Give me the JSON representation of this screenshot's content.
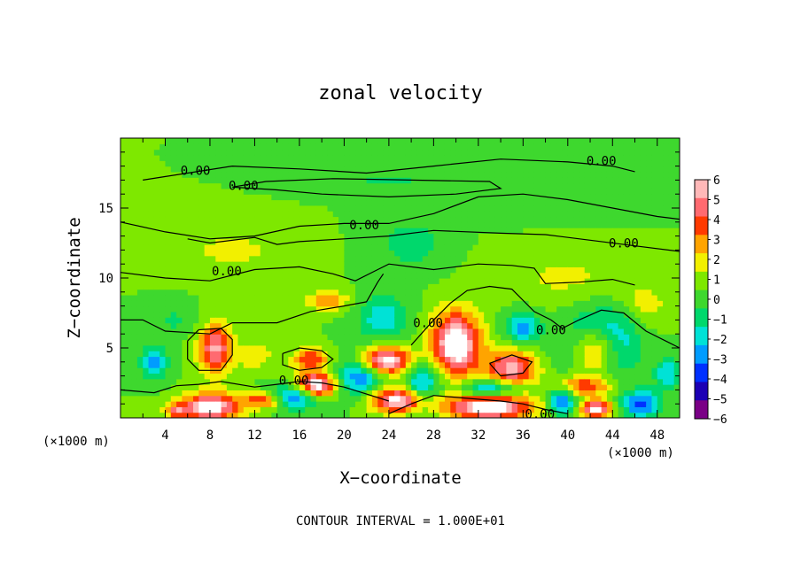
{
  "chart_data": {
    "type": "heatmap",
    "title": "zonal velocity",
    "xlabel": "X−coordinate",
    "ylabel": "Z−coordinate",
    "x_unit_left": "(×1000 m)",
    "x_unit_right": "(×1000 m)",
    "footer": "CONTOUR INTERVAL = 1.000E+01",
    "xlim": [
      0,
      50
    ],
    "ylim": [
      0,
      20
    ],
    "x_ticks": [
      4,
      8,
      12,
      16,
      20,
      24,
      28,
      32,
      36,
      40,
      44,
      48
    ],
    "x_minor_step": 2,
    "y_ticks": [
      5,
      10,
      15
    ],
    "y_minor_step": 1,
    "colorbar": {
      "min": -6,
      "max": 6,
      "ticks": [
        6,
        5,
        4,
        3,
        2,
        1,
        0,
        -1,
        -2,
        -3,
        -4,
        -5,
        -6
      ],
      "tick_labels": [
        "6",
        "5",
        "4",
        "3",
        "2",
        "1",
        "0",
        "−1",
        "−2",
        "−3",
        "−4",
        "−5",
        "−6"
      ],
      "colors": [
        "#7a0086",
        "#1c00b4",
        "#0030ff",
        "#009cff",
        "#00e2d6",
        "#00d86c",
        "#3ed82e",
        "#7ee800",
        "#f2f000",
        "#ffa400",
        "#ff3a00",
        "#ff6a70",
        "#ffb8b8"
      ]
    },
    "background_value": 0.5,
    "features": [
      {
        "x": 8.5,
        "z": 5.0,
        "value": 5.2,
        "rx": 1.5,
        "rz": 1.8
      },
      {
        "x": 17.0,
        "z": 4.2,
        "value": 4.0,
        "rx": 1.6,
        "rz": 0.8
      },
      {
        "x": 18.5,
        "z": 8.4,
        "value": 3.2,
        "rx": 1.8,
        "rz": 0.7
      },
      {
        "x": 23.5,
        "z": 4.1,
        "value": 7.0,
        "rx": 2.5,
        "rz": 1.0
      },
      {
        "x": 17.5,
        "z": 2.3,
        "value": 7.0,
        "rx": 1.7,
        "rz": 0.9
      },
      {
        "x": 25.0,
        "z": 1.3,
        "value": 6.5,
        "rx": 2.8,
        "rz": 0.9
      },
      {
        "x": 30.0,
        "z": 5.3,
        "value": 7.0,
        "rx": 2.2,
        "rz": 2.3
      },
      {
        "x": 33.0,
        "z": 0.8,
        "value": 6.5,
        "rx": 4.0,
        "rz": 0.9
      },
      {
        "x": 35.0,
        "z": 3.6,
        "value": 5.5,
        "rx": 2.2,
        "rz": 1.3
      },
      {
        "x": 42.5,
        "z": 4.9,
        "value": 6.5,
        "rx": 2.0,
        "rz": 1.7
      },
      {
        "x": 8.0,
        "z": 0.8,
        "value": 6.5,
        "rx": 2.6,
        "rz": 1.0
      },
      {
        "x": 42.5,
        "z": 0.7,
        "value": 6.5,
        "rx": 1.4,
        "rz": 0.6
      },
      {
        "x": 13.0,
        "z": 1.3,
        "value": 4.5,
        "rx": 2.0,
        "rz": 0.6
      },
      {
        "x": 41.5,
        "z": 2.3,
        "value": 4.0,
        "rx": 2.4,
        "rz": 0.7
      },
      {
        "x": 3.0,
        "z": 4.0,
        "value": -3.5,
        "rx": 1.2,
        "rz": 1.2
      },
      {
        "x": 15.5,
        "z": 1.5,
        "value": -5.0,
        "rx": 2.4,
        "rz": 0.8
      },
      {
        "x": 21.5,
        "z": 3.2,
        "value": -4.5,
        "rx": 2.0,
        "rz": 1.6
      },
      {
        "x": 27.0,
        "z": 2.2,
        "value": -4.0,
        "rx": 1.6,
        "rz": 1.8
      },
      {
        "x": 23.5,
        "z": 7.2,
        "value": -2.8,
        "rx": 2.2,
        "rz": 1.5
      },
      {
        "x": 36.0,
        "z": 6.5,
        "value": -3.5,
        "rx": 1.6,
        "rz": 1.2
      },
      {
        "x": 33.0,
        "z": 2.1,
        "value": -4.0,
        "rx": 2.5,
        "rz": 0.6
      },
      {
        "x": 43.0,
        "z": 5.4,
        "value": -5.2,
        "rx": 3.0,
        "rz": 2.3
      },
      {
        "x": 39.5,
        "z": 1.1,
        "value": -4.5,
        "rx": 1.2,
        "rz": 1.0
      },
      {
        "x": 46.5,
        "z": 1.0,
        "value": -4.5,
        "rx": 1.6,
        "rz": 1.0
      },
      {
        "x": 49.0,
        "z": 3.2,
        "value": -3.0,
        "rx": 1.2,
        "rz": 1.0
      },
      {
        "x": 5.0,
        "z": 0.5,
        "value": 3.5,
        "rx": 1.0,
        "rz": 0.5
      },
      {
        "x": 12.0,
        "z": 4.5,
        "value": 2.0,
        "rx": 1.5,
        "rz": 1.0
      },
      {
        "x": 26.0,
        "z": 12.5,
        "value": -1.5,
        "rx": 3.0,
        "rz": 2.0
      },
      {
        "x": 24.0,
        "z": 17.0,
        "value": -1.2,
        "rx": 5.0,
        "rz": 0.8
      },
      {
        "x": 38.0,
        "z": 15.5,
        "value": -1.0,
        "rx": 6.0,
        "rz": 1.2
      },
      {
        "x": 10.0,
        "z": 12.0,
        "value": 1.3,
        "rx": 5.0,
        "rz": 1.5
      },
      {
        "x": 40.0,
        "z": 10.0,
        "value": 1.2,
        "rx": 6.0,
        "rz": 2.0
      },
      {
        "x": 5.0,
        "z": 7.0,
        "value": -1.2,
        "rx": 2.0,
        "rz": 1.0
      },
      {
        "x": 47.0,
        "z": 8.0,
        "value": 1.5,
        "rx": 2.0,
        "rz": 1.5
      }
    ],
    "contour_labels": [
      {
        "x": 6.7,
        "z": 17.7,
        "text": "0.00"
      },
      {
        "x": 43.0,
        "z": 18.4,
        "text": "0.00"
      },
      {
        "x": 11.0,
        "z": 16.6,
        "text": "0.00"
      },
      {
        "x": 21.8,
        "z": 13.8,
        "text": "0.00"
      },
      {
        "x": 45.0,
        "z": 12.5,
        "text": "0.00"
      },
      {
        "x": 9.5,
        "z": 10.5,
        "text": "0.00"
      },
      {
        "x": 27.5,
        "z": 6.8,
        "text": "0.00"
      },
      {
        "x": 38.5,
        "z": 6.3,
        "text": "0.00"
      },
      {
        "x": 15.5,
        "z": 2.7,
        "text": "0.00"
      },
      {
        "x": 37.5,
        "z": 0.3,
        "text": "0.00"
      }
    ],
    "contours": [
      [
        [
          2,
          17.0
        ],
        [
          6,
          17.5
        ],
        [
          10,
          18.0
        ],
        [
          16,
          17.8
        ],
        [
          22,
          17.5
        ],
        [
          28,
          18.0
        ],
        [
          34,
          18.5
        ],
        [
          40,
          18.3
        ],
        [
          44,
          18.0
        ],
        [
          46,
          17.6
        ]
      ],
      [
        [
          10,
          16.5
        ],
        [
          14,
          16.3
        ],
        [
          18,
          16.0
        ],
        [
          24,
          15.8
        ],
        [
          30,
          16.0
        ],
        [
          34,
          16.4
        ],
        [
          33,
          16.9
        ],
        [
          26,
          17.0
        ],
        [
          19,
          17.1
        ],
        [
          13,
          16.9
        ],
        [
          10,
          16.5
        ]
      ],
      [
        [
          0,
          14.0
        ],
        [
          4,
          13.3
        ],
        [
          8,
          12.8
        ],
        [
          12,
          13.0
        ],
        [
          16,
          13.7
        ],
        [
          20,
          13.9
        ],
        [
          24,
          13.9
        ],
        [
          28,
          14.6
        ],
        [
          32,
          15.8
        ],
        [
          36,
          16.0
        ],
        [
          40,
          15.6
        ],
        [
          44,
          15.0
        ],
        [
          48,
          14.4
        ],
        [
          50,
          14.2
        ]
      ],
      [
        [
          6,
          12.8
        ],
        [
          8,
          12.5
        ],
        [
          12,
          12.9
        ],
        [
          14,
          12.4
        ],
        [
          16,
          12.6
        ],
        [
          20,
          12.8
        ],
        [
          24,
          13.0
        ],
        [
          28,
          13.4
        ],
        [
          34,
          13.2
        ],
        [
          38,
          13.1
        ],
        [
          42,
          12.7
        ],
        [
          46,
          12.3
        ],
        [
          50,
          11.9
        ]
      ],
      [
        [
          0,
          10.4
        ],
        [
          4,
          10.0
        ],
        [
          8,
          9.8
        ],
        [
          12,
          10.6
        ],
        [
          16,
          10.8
        ],
        [
          19,
          10.3
        ],
        [
          21,
          9.8
        ],
        [
          23,
          10.6
        ],
        [
          24,
          11.0
        ],
        [
          26,
          10.8
        ],
        [
          28,
          10.6
        ],
        [
          32,
          11.0
        ],
        [
          35,
          10.9
        ],
        [
          37,
          10.7
        ],
        [
          38,
          9.6
        ],
        [
          41,
          9.7
        ],
        [
          44,
          9.9
        ],
        [
          46,
          9.5
        ]
      ],
      [
        [
          0,
          7.0
        ],
        [
          2,
          7.0
        ],
        [
          4,
          6.2
        ],
        [
          8,
          6.0
        ],
        [
          10,
          6.8
        ],
        [
          14,
          6.8
        ],
        [
          17,
          7.6
        ],
        [
          20,
          8.0
        ],
        [
          22,
          8.3
        ],
        [
          23,
          9.7
        ],
        [
          23.5,
          10.3
        ]
      ],
      [
        [
          26,
          5.2
        ],
        [
          28,
          7.0
        ],
        [
          29.5,
          8.2
        ],
        [
          31,
          9.1
        ],
        [
          33,
          9.4
        ],
        [
          35,
          9.2
        ],
        [
          37,
          7.6
        ],
        [
          38.5,
          7.0
        ],
        [
          39.5,
          6.4
        ],
        [
          41,
          7.0
        ],
        [
          43,
          7.7
        ],
        [
          45,
          7.5
        ],
        [
          47,
          6.2
        ],
        [
          49,
          5.4
        ],
        [
          50,
          5.0
        ]
      ],
      [
        [
          0,
          2.0
        ],
        [
          3,
          1.8
        ],
        [
          5,
          2.3
        ],
        [
          7,
          2.4
        ],
        [
          9,
          2.6
        ],
        [
          12,
          2.2
        ],
        [
          14,
          2.4
        ],
        [
          16,
          2.6
        ],
        [
          18,
          2.5
        ],
        [
          20,
          2.2
        ],
        [
          22,
          1.7
        ],
        [
          24,
          1.2
        ]
      ],
      [
        [
          24,
          0.3
        ],
        [
          26,
          1.0
        ],
        [
          28,
          1.6
        ],
        [
          31,
          1.4
        ],
        [
          34,
          1.2
        ],
        [
          36,
          1.0
        ],
        [
          38,
          0.6
        ],
        [
          40,
          0.3
        ]
      ],
      [
        [
          14.5,
          4.6
        ],
        [
          16,
          5.0
        ],
        [
          18,
          4.8
        ],
        [
          19,
          4.2
        ],
        [
          18,
          3.6
        ],
        [
          16,
          3.4
        ],
        [
          14.5,
          3.8
        ],
        [
          14.5,
          4.6
        ]
      ],
      [
        [
          33,
          3.9
        ],
        [
          35,
          4.5
        ],
        [
          36.8,
          4.0
        ],
        [
          36,
          3.2
        ],
        [
          34,
          3.0
        ],
        [
          33,
          3.9
        ]
      ],
      [
        [
          6,
          5.5
        ],
        [
          7,
          6.3
        ],
        [
          9,
          6.4
        ],
        [
          10,
          5.6
        ],
        [
          10,
          4.5
        ],
        [
          9,
          3.4
        ],
        [
          7,
          3.4
        ],
        [
          6,
          4.2
        ],
        [
          6,
          5.5
        ]
      ]
    ]
  }
}
